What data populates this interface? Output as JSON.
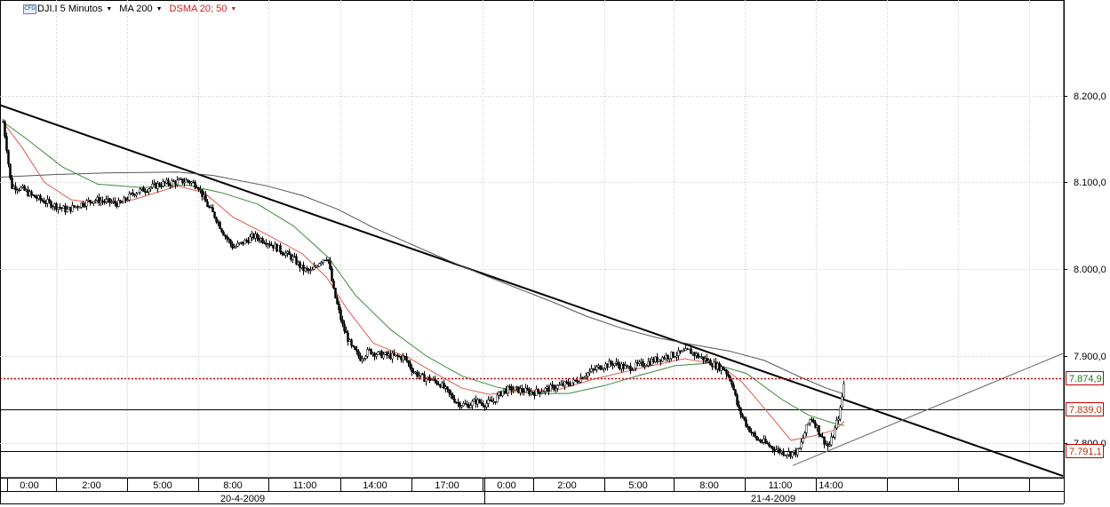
{
  "toolbar": {
    "symbol_icon": "cfd-icon",
    "symbol_icon_text": "CFD",
    "symbol_label": "DJI.I 5 Minutos",
    "ma_label": "MA 200",
    "dsma_label": "DSMA 20; 50"
  },
  "colors": {
    "price": "#000000",
    "ma200": "#555555",
    "dsma20": "#e25a4a",
    "dsma50": "#3b8a3b",
    "last_price": "#c00000",
    "last_price_badge_text": "#1a7a1a",
    "level_badge_text": "#b03000",
    "grid": "#c8c8c8"
  },
  "chart_data": {
    "type": "candlestick",
    "y_axis": {
      "range": [
        7760,
        8310
      ],
      "ticks": [
        "8.200,0",
        "8.100,0",
        "8.000,0",
        "7.900,0",
        "7.800,0"
      ],
      "tick_values": [
        8200,
        8100,
        8000,
        7900,
        7800
      ]
    },
    "x_axis": {
      "range": [
        0,
        1200
      ],
      "time_labels": [
        "0:00",
        "2:00",
        "5:00",
        "8:00",
        "11:00",
        "14:00",
        "17:00",
        "0:00",
        "2:00",
        "5:00",
        "8:00",
        "11:00",
        "14:00"
      ],
      "time_positions": [
        33,
        103,
        183,
        262,
        343,
        422,
        503,
        570,
        638,
        718,
        798,
        878,
        935
      ],
      "grid_positions": [
        63,
        143,
        223,
        302,
        383,
        463,
        543,
        600,
        680,
        758,
        838,
        918,
        998,
        1078,
        1158
      ],
      "dates": [
        "20-4-2009",
        "21-4-2009"
      ],
      "date_positions": [
        273,
        870
      ],
      "day_boundary": 545
    },
    "horizontal_levels": [
      {
        "value": 7839.0,
        "label": "7.839,0"
      },
      {
        "value": 7791.1,
        "label": "7.791,1"
      }
    ],
    "last_price": {
      "value": 7874.9,
      "label": "7.874,9"
    },
    "trendlines": [
      {
        "name": "downtrend",
        "points": [
          [
            0,
            8189
          ],
          [
            1196,
            7762
          ]
        ]
      },
      {
        "name": "uptrend",
        "points": [
          [
            892,
            7774
          ],
          [
            1196,
            7903
          ]
        ]
      }
    ],
    "price_path": [
      [
        3,
        8170
      ],
      [
        7,
        8140
      ],
      [
        12,
        8095
      ],
      [
        18,
        8095
      ],
      [
        25,
        8092
      ],
      [
        35,
        8085
      ],
      [
        45,
        8080
      ],
      [
        60,
        8074
      ],
      [
        75,
        8068
      ],
      [
        90,
        8075
      ],
      [
        105,
        8080
      ],
      [
        120,
        8078
      ],
      [
        135,
        8075
      ],
      [
        150,
        8088
      ],
      [
        165,
        8093
      ],
      [
        180,
        8098
      ],
      [
        195,
        8100
      ],
      [
        210,
        8102
      ],
      [
        222,
        8097
      ],
      [
        232,
        8075
      ],
      [
        242,
        8060
      ],
      [
        252,
        8040
      ],
      [
        262,
        8025
      ],
      [
        272,
        8030
      ],
      [
        285,
        8038
      ],
      [
        300,
        8032
      ],
      [
        315,
        8022
      ],
      [
        330,
        8012
      ],
      [
        340,
        8000
      ],
      [
        350,
        7997
      ],
      [
        360,
        8010
      ],
      [
        368,
        8015
      ],
      [
        375,
        7975
      ],
      [
        385,
        7935
      ],
      [
        395,
        7910
      ],
      [
        405,
        7898
      ],
      [
        415,
        7906
      ],
      [
        425,
        7902
      ],
      [
        440,
        7900
      ],
      [
        455,
        7898
      ],
      [
        465,
        7882
      ],
      [
        475,
        7875
      ],
      [
        485,
        7873
      ],
      [
        495,
        7868
      ],
      [
        505,
        7856
      ],
      [
        515,
        7846
      ],
      [
        525,
        7843
      ],
      [
        535,
        7848
      ],
      [
        545,
        7845
      ],
      [
        555,
        7848
      ],
      [
        565,
        7860
      ],
      [
        575,
        7862
      ],
      [
        590,
        7860
      ],
      [
        600,
        7858
      ],
      [
        615,
        7862
      ],
      [
        630,
        7866
      ],
      [
        645,
        7870
      ],
      [
        660,
        7880
      ],
      [
        675,
        7888
      ],
      [
        690,
        7892
      ],
      [
        705,
        7886
      ],
      [
        720,
        7890
      ],
      [
        735,
        7895
      ],
      [
        750,
        7900
      ],
      [
        765,
        7903
      ],
      [
        775,
        7906
      ],
      [
        785,
        7900
      ],
      [
        795,
        7895
      ],
      [
        805,
        7889
      ],
      [
        815,
        7885
      ],
      [
        823,
        7870
      ],
      [
        830,
        7840
      ],
      [
        840,
        7820
      ],
      [
        850,
        7805
      ],
      [
        860,
        7800
      ],
      [
        868,
        7795
      ],
      [
        878,
        7790
      ],
      [
        888,
        7788
      ],
      [
        898,
        7790
      ],
      [
        905,
        7812
      ],
      [
        912,
        7830
      ],
      [
        918,
        7820
      ],
      [
        925,
        7805
      ],
      [
        932,
        7795
      ],
      [
        938,
        7812
      ],
      [
        945,
        7838
      ],
      [
        950,
        7875
      ]
    ],
    "series": [
      {
        "name": "MA 200",
        "points": [
          [
            0,
            8106
          ],
          [
            60,
            8109
          ],
          [
            120,
            8111
          ],
          [
            200,
            8112
          ],
          [
            240,
            8108
          ],
          [
            300,
            8096
          ],
          [
            340,
            8085
          ],
          [
            380,
            8069
          ],
          [
            420,
            8048
          ],
          [
            460,
            8030
          ],
          [
            500,
            8012
          ],
          [
            540,
            7995
          ],
          [
            580,
            7979
          ],
          [
            620,
            7963
          ],
          [
            660,
            7946
          ],
          [
            700,
            7932
          ],
          [
            740,
            7921
          ],
          [
            780,
            7913
          ],
          [
            820,
            7906
          ],
          [
            860,
            7895
          ],
          [
            900,
            7876
          ],
          [
            930,
            7863
          ],
          [
            948,
            7857
          ]
        ]
      },
      {
        "name": "DSMA 20",
        "points": [
          [
            3,
            8170
          ],
          [
            25,
            8140
          ],
          [
            50,
            8100
          ],
          [
            80,
            8080
          ],
          [
            110,
            8076
          ],
          [
            150,
            8080
          ],
          [
            200,
            8096
          ],
          [
            230,
            8088
          ],
          [
            262,
            8060
          ],
          [
            300,
            8040
          ],
          [
            340,
            8018
          ],
          [
            368,
            7990
          ],
          [
            390,
            7955
          ],
          [
            420,
            7915
          ],
          [
            460,
            7898
          ],
          [
            490,
            7880
          ],
          [
            520,
            7863
          ],
          [
            550,
            7856
          ],
          [
            590,
            7860
          ],
          [
            630,
            7862
          ],
          [
            670,
            7874
          ],
          [
            720,
            7886
          ],
          [
            770,
            7897
          ],
          [
            810,
            7890
          ],
          [
            835,
            7870
          ],
          [
            860,
            7840
          ],
          [
            890,
            7803
          ],
          [
            915,
            7808
          ],
          [
            940,
            7815
          ],
          [
            950,
            7825
          ]
        ]
      },
      {
        "name": "DSMA 50",
        "points": [
          [
            3,
            8170
          ],
          [
            30,
            8150
          ],
          [
            70,
            8118
          ],
          [
            110,
            8098
          ],
          [
            160,
            8094
          ],
          [
            210,
            8097
          ],
          [
            250,
            8088
          ],
          [
            290,
            8075
          ],
          [
            330,
            8050
          ],
          [
            370,
            8013
          ],
          [
            400,
            7970
          ],
          [
            440,
            7930
          ],
          [
            480,
            7900
          ],
          [
            520,
            7877
          ],
          [
            560,
            7864
          ],
          [
            600,
            7857
          ],
          [
            640,
            7857
          ],
          [
            680,
            7866
          ],
          [
            720,
            7878
          ],
          [
            760,
            7889
          ],
          [
            800,
            7892
          ],
          [
            840,
            7880
          ],
          [
            880,
            7850
          ],
          [
            910,
            7832
          ],
          [
            940,
            7822
          ],
          [
            950,
            7820
          ]
        ]
      }
    ]
  }
}
